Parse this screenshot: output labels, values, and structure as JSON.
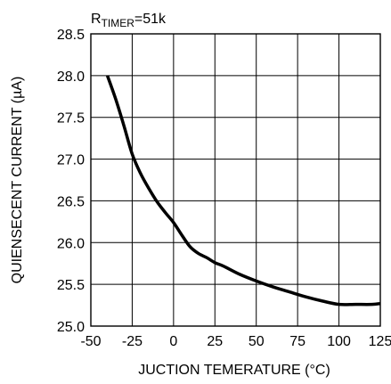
{
  "chart_data": {
    "type": "line",
    "title": "",
    "annotation": {
      "prefix": "R",
      "subscript": "TIMER",
      "suffix": "=51k"
    },
    "xlabel": "JUCTION TEMERATURE (°C)",
    "ylabel": "QUIENSECENT CURRENT (µA)",
    "xlim": [
      -50,
      125
    ],
    "ylim": [
      25.0,
      28.5
    ],
    "x_ticks": [
      -50,
      -25,
      0,
      25,
      50,
      75,
      100,
      125
    ],
    "y_ticks": [
      25.0,
      25.5,
      26.0,
      26.5,
      27.0,
      27.5,
      28.0,
      28.5
    ],
    "x_tick_labels": [
      "-50",
      "-25",
      "0",
      "25",
      "50",
      "75",
      "100",
      "125"
    ],
    "y_tick_labels": [
      "25.0",
      "25.5",
      "26.0",
      "26.5",
      "27.0",
      "27.5",
      "28.0",
      "28.5"
    ],
    "grid": true,
    "series": [
      {
        "color": "#000000",
        "x": [
          -40,
          -35,
          -30,
          -25,
          -20,
          -15,
          -10,
          -5,
          0,
          5,
          10,
          15,
          20,
          25,
          30,
          40,
          50,
          60,
          70,
          80,
          90,
          100,
          110,
          120,
          125
        ],
        "y": [
          28.0,
          27.72,
          27.4,
          27.06,
          26.83,
          26.65,
          26.49,
          26.36,
          26.24,
          26.09,
          25.95,
          25.87,
          25.82,
          25.76,
          25.72,
          25.62,
          25.54,
          25.47,
          25.41,
          25.35,
          25.3,
          25.26,
          25.26,
          25.26,
          25.27
        ]
      }
    ]
  }
}
